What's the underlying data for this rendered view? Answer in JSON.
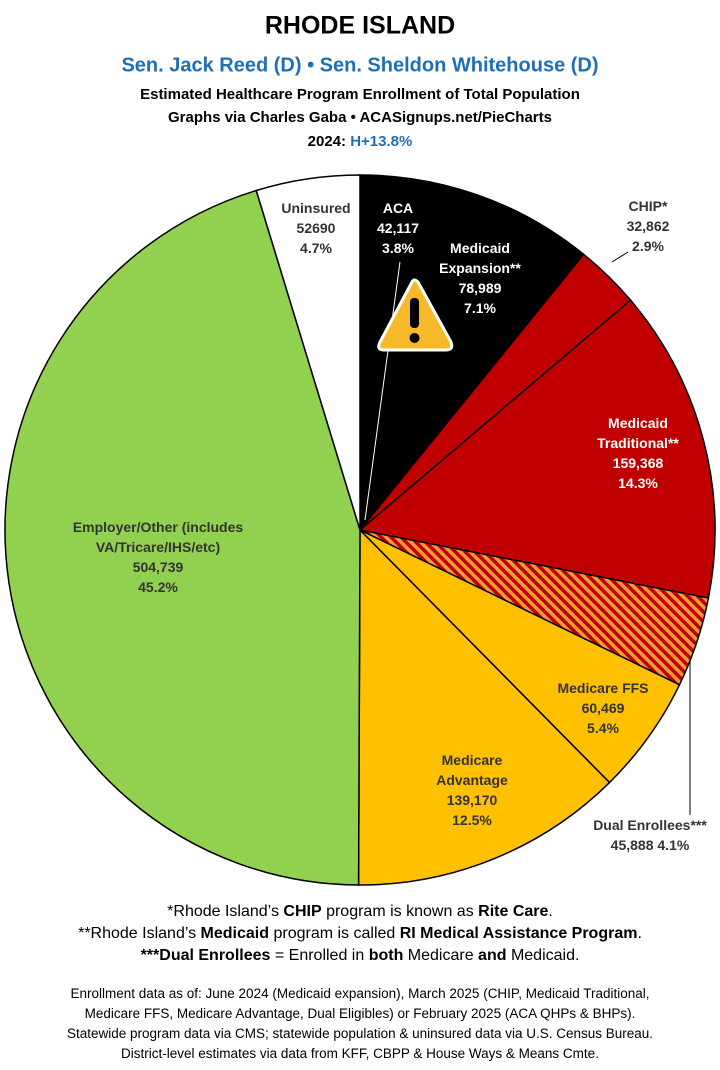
{
  "chart_data": {
    "type": "pie",
    "title": "RHODE ISLAND",
    "subtitle": "Sen. Jack Reed (D) • Sen. Sheldon Whitehouse (D)",
    "description": [
      "Estimated Healthcare Program Enrollment of Total Population",
      "Graphs via Charles Gaba  •  ACASignups.net/PieCharts"
    ],
    "year_label": "2024:",
    "partisan_lean": "H+13.8%",
    "categories": [
      "ACA",
      "Medicaid Expansion**",
      "CHIP*",
      "Medicaid Traditional**",
      "Dual Enrollees***",
      "Medicare FFS",
      "Medicare Advantage",
      "Employer/Other (includes VA/Tricare/IHS/etc)",
      "Uninsured"
    ],
    "values": [
      42117,
      78989,
      32862,
      159368,
      45888,
      60469,
      139170,
      504739,
      52690
    ],
    "value_labels": [
      "42,117",
      "78,989",
      "32,862",
      "159,368",
      "45,888",
      "60,469",
      "139,170",
      "504,739",
      "52690"
    ],
    "percent_labels": [
      "3.8%",
      "7.1%",
      "2.9%",
      "14.3%",
      "4.1%",
      "5.4%",
      "12.5%",
      "45.2%",
      "4.7%"
    ],
    "colors": [
      "#000000",
      "#000000",
      "#c00000",
      "#c00000",
      "hatch",
      "#ffc000",
      "#ffc000",
      "#92d050",
      "#ffffff"
    ],
    "footnotes": [
      [
        {
          "text": "*Rhode Island’s ",
          "bold": false
        },
        {
          "text": "CHIP",
          "bold": true
        },
        {
          "text": " program is known as ",
          "bold": false
        },
        {
          "text": "Rite Care",
          "bold": true
        },
        {
          "text": ".",
          "bold": false
        }
      ],
      [
        {
          "text": "**Rhode Island’s ",
          "bold": false
        },
        {
          "text": "Medicaid",
          "bold": true
        },
        {
          "text": " program is called ",
          "bold": false
        },
        {
          "text": "RI Medical Assistance Program",
          "bold": true
        },
        {
          "text": ".",
          "bold": false
        }
      ],
      [
        {
          "text": "***Dual Enrollees",
          "bold": true
        },
        {
          "text": " = Enrolled in ",
          "bold": false
        },
        {
          "text": "both",
          "bold": true
        },
        {
          "text": " Medicare ",
          "bold": false
        },
        {
          "text": "and",
          "bold": true
        },
        {
          "text": " Medicaid.",
          "bold": false
        }
      ]
    ],
    "notes": [
      "Enrollment data as of: June 2024 (Medicaid expansion), March 2025 (CHIP, Medicaid Traditional,",
      "Medicare FFS, Medicare Advantage, Dual Eligibles) or February 2025 (ACA QHPs & BHPs).",
      "Statewide program data via CMS; statewide population & uninsured data via U.S. Census Bureau.",
      "District-level estimates via data from KFF, CBPP & House Ways & Means Cmte."
    ]
  }
}
